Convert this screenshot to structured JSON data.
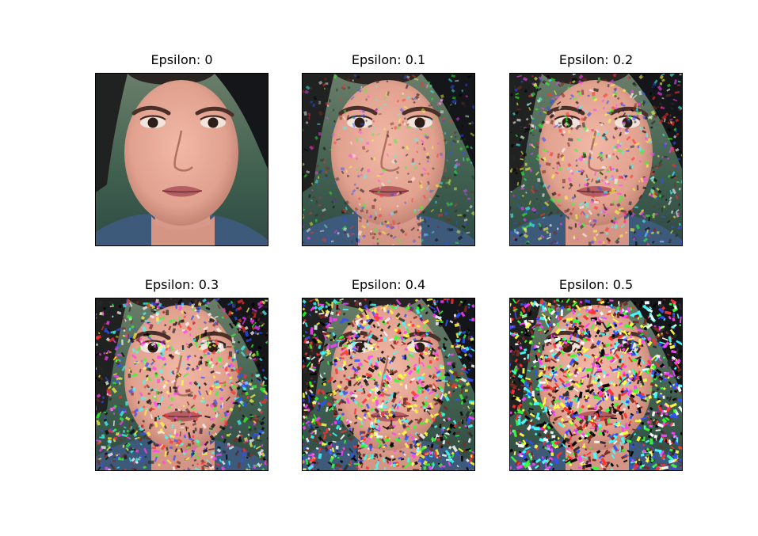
{
  "figure": {
    "panels": [
      {
        "title": "Epsilon: 0",
        "epsilon": 0
      },
      {
        "title": "Epsilon: 0.1",
        "epsilon": 0.1
      },
      {
        "title": "Epsilon: 0.2",
        "epsilon": 0.2
      },
      {
        "title": "Epsilon: 0.3",
        "epsilon": 0.3
      },
      {
        "title": "Epsilon: 0.4",
        "epsilon": 0.4
      },
      {
        "title": "Epsilon: 0.5",
        "epsilon": 0.5
      }
    ]
  }
}
